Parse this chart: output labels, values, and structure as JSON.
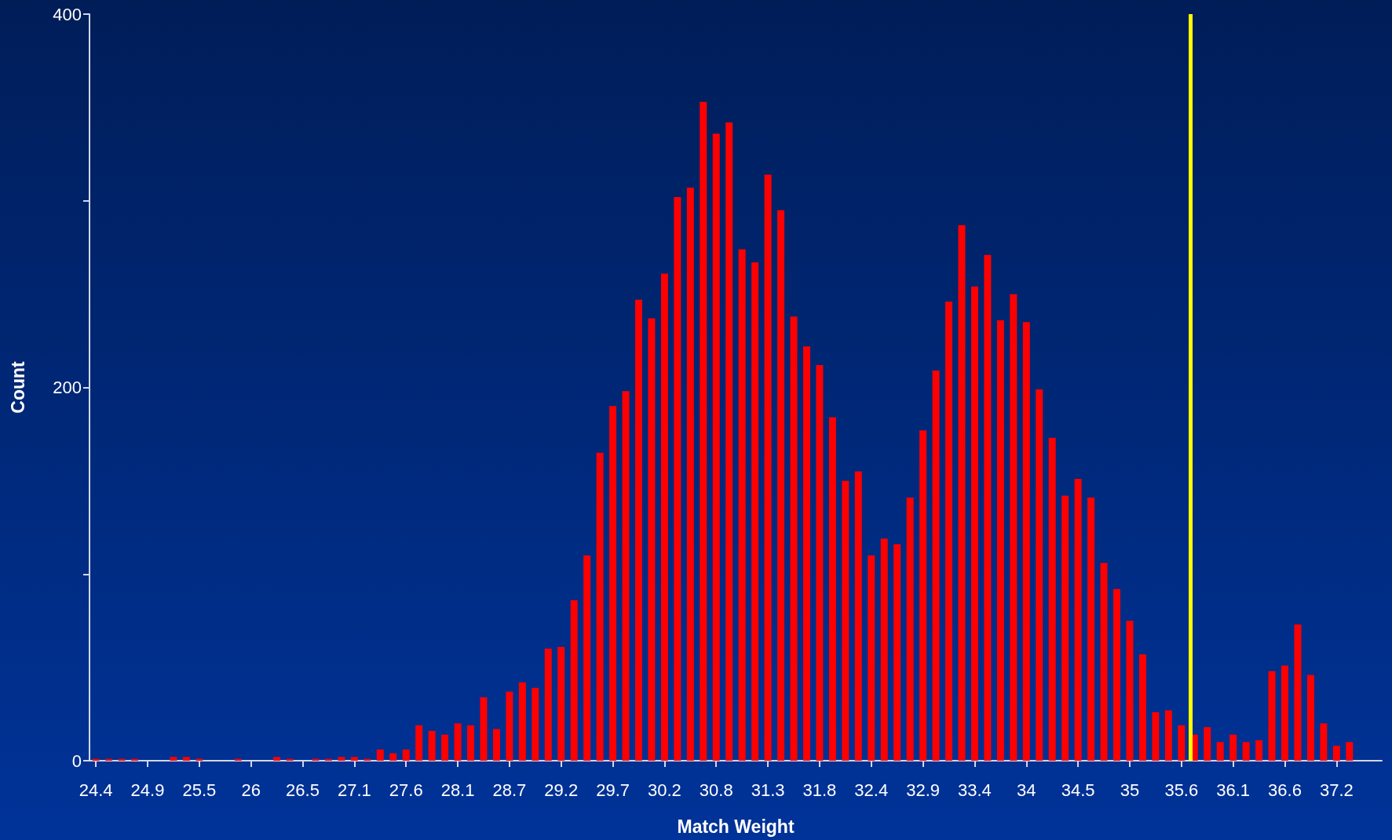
{
  "chart_data": {
    "type": "bar",
    "xlabel": "Match Weight",
    "ylabel": "Count",
    "color": "#ff0000",
    "x": [
      24.396,
      24.529,
      24.662,
      24.795,
      24.928,
      25.061,
      25.194,
      25.327,
      25.46,
      25.593,
      25.726,
      25.859,
      25.992,
      26.125,
      26.258,
      26.391,
      26.524,
      26.657,
      26.79,
      26.923,
      27.056,
      27.189,
      27.322,
      27.455,
      27.588,
      27.721,
      27.854,
      27.987,
      28.12,
      28.253,
      28.386,
      28.519,
      28.652,
      28.785,
      28.918,
      29.051,
      29.184,
      29.317,
      29.45,
      29.583,
      29.716,
      29.849,
      29.982,
      30.115,
      30.248,
      30.381,
      30.514,
      30.647,
      30.78,
      30.913,
      31.046,
      31.179,
      31.312,
      31.445,
      31.578,
      31.711,
      31.844,
      31.977,
      32.11,
      32.243,
      32.376,
      32.509,
      32.642,
      32.775,
      32.908,
      33.041,
      33.174,
      33.307,
      33.44,
      33.573,
      33.706,
      33.839,
      33.972,
      34.105,
      34.238,
      34.371,
      34.504,
      34.637,
      34.77,
      34.903,
      35.036,
      35.169,
      35.302,
      35.435,
      35.568,
      35.701,
      35.834,
      35.967,
      36.1,
      36.233,
      36.366,
      36.499,
      36.632,
      36.765,
      36.898,
      37.031,
      37.164,
      37.297
    ],
    "values": [
      1,
      1,
      1,
      1,
      0,
      0,
      2,
      2,
      1,
      0,
      0,
      1,
      0,
      0,
      2,
      1,
      0,
      1,
      1,
      2,
      2,
      1,
      6,
      4,
      6,
      19,
      16,
      14,
      20,
      19,
      34,
      17,
      37,
      42,
      39,
      60,
      61,
      86,
      110,
      165,
      190,
      198,
      247,
      237,
      261,
      302,
      307,
      353,
      336,
      342,
      274,
      267,
      314,
      295,
      238,
      222,
      212,
      184,
      150,
      155,
      110,
      119,
      116,
      141,
      177,
      209,
      246,
      287,
      254,
      271,
      236,
      250,
      235,
      199,
      173,
      142,
      151,
      141,
      106,
      92,
      75,
      57,
      26,
      27,
      19,
      14,
      18,
      10,
      14,
      10,
      11,
      48,
      51,
      73,
      46,
      20,
      8,
      10
    ],
    "xlim": [
      24.33,
      37.63
    ],
    "xticks": [
      {
        "value": 24.396,
        "label": "24.4"
      },
      {
        "value": 24.928,
        "label": "24.9"
      },
      {
        "value": 25.46,
        "label": "25.5"
      },
      {
        "value": 25.992,
        "label": "26"
      },
      {
        "value": 26.524,
        "label": "26.5"
      },
      {
        "value": 27.056,
        "label": "27.1"
      },
      {
        "value": 27.588,
        "label": "27.6"
      },
      {
        "value": 28.12,
        "label": "28.1"
      },
      {
        "value": 28.652,
        "label": "28.7"
      },
      {
        "value": 29.184,
        "label": "29.2"
      },
      {
        "value": 29.716,
        "label": "29.7"
      },
      {
        "value": 30.248,
        "label": "30.2"
      },
      {
        "value": 30.78,
        "label": "30.8"
      },
      {
        "value": 31.312,
        "label": "31.3"
      },
      {
        "value": 31.844,
        "label": "31.8"
      },
      {
        "value": 32.376,
        "label": "32.4"
      },
      {
        "value": 32.908,
        "label": "32.9"
      },
      {
        "value": 33.44,
        "label": "33.4"
      },
      {
        "value": 33.972,
        "label": "34"
      },
      {
        "value": 34.504,
        "label": "34.5"
      },
      {
        "value": 35.036,
        "label": "35"
      },
      {
        "value": 35.568,
        "label": "35.6"
      },
      {
        "value": 36.1,
        "label": "36.1"
      },
      {
        "value": 36.632,
        "label": "36.6"
      },
      {
        "value": 37.164,
        "label": "37.2"
      }
    ],
    "ylim": [
      0,
      400
    ],
    "yticks": [
      0,
      {
        "value": 100,
        "label": null
      },
      200,
      {
        "value": 300,
        "label": null
      },
      400
    ],
    "ref_lines": [
      {
        "axis": "x",
        "value": 35.66,
        "color": "#ffff00"
      }
    ]
  }
}
